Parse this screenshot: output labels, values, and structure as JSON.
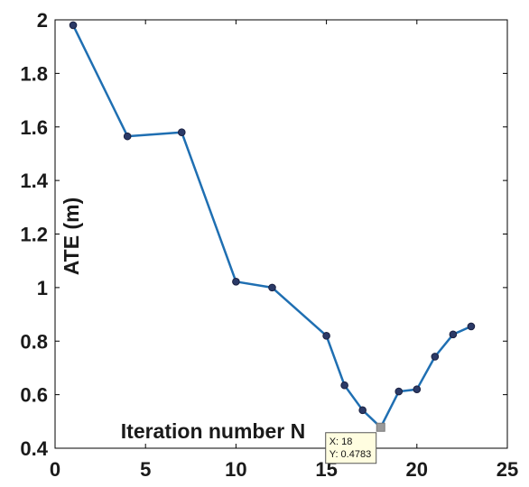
{
  "chart_data": {
    "type": "line",
    "title": "",
    "xlabel": "Iteration number N",
    "ylabel": "ATE (m)",
    "xlim": [
      0,
      25
    ],
    "ylim": [
      0.4,
      2
    ],
    "xticks": [
      0,
      5,
      10,
      15,
      20,
      25
    ],
    "yticks": [
      0.4,
      0.6,
      0.8,
      1,
      1.2,
      1.4,
      1.6,
      1.8,
      2
    ],
    "xtick_labels": [
      "0",
      "5",
      "10",
      "15",
      "20",
      "25"
    ],
    "ytick_labels": [
      "0.4",
      "0.6",
      "0.8",
      "1",
      "1.2",
      "1.4",
      "1.6",
      "1.8",
      "2"
    ],
    "grid": false,
    "line_color": "#1f6fb2",
    "marker_color": "#2b3a67",
    "series": [
      {
        "x": [
          1,
          4,
          7,
          10,
          12,
          15,
          16,
          17,
          18,
          19,
          20,
          21,
          22,
          23
        ],
        "y": [
          1.98,
          1.565,
          1.58,
          1.022,
          1.0,
          0.82,
          0.635,
          0.542,
          0.4783,
          0.612,
          0.62,
          0.742,
          0.825,
          0.855
        ]
      }
    ],
    "annotations": [
      {
        "type": "datatip",
        "point_x": 18,
        "point_y": 0.4783,
        "lines": [
          "X: 18",
          "Y: 0.4783"
        ]
      }
    ]
  }
}
